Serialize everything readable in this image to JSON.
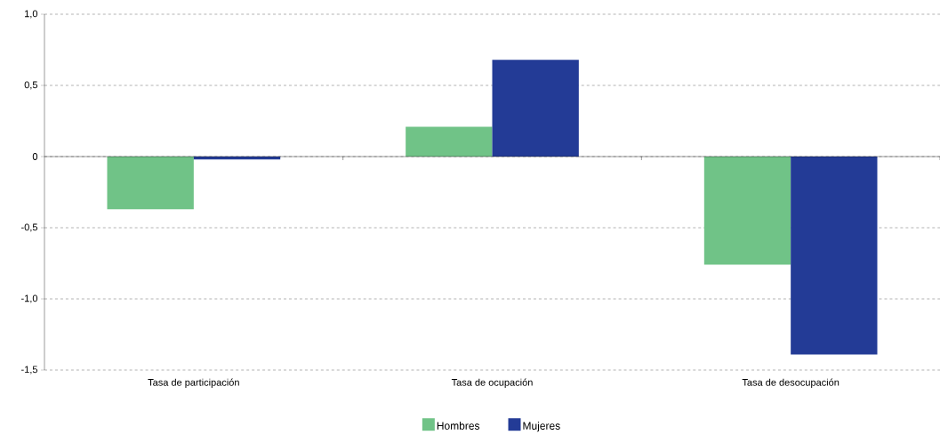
{
  "chart_data": {
    "type": "bar",
    "categories": [
      "Tasa de participación",
      "Tasa de ocupación",
      "Tasa de desocupación"
    ],
    "series": [
      {
        "name": "Hombres",
        "color": "#70c387",
        "values": [
          -0.37,
          0.21,
          -0.76
        ]
      },
      {
        "name": "Mujeres",
        "color": "#233b96",
        "values": [
          -0.02,
          0.68,
          -1.39
        ]
      }
    ],
    "ylim": [
      -1.5,
      1.0
    ],
    "yticks": [
      {
        "value": -1.5,
        "label": "-1,5"
      },
      {
        "value": -1.0,
        "label": "-1,0"
      },
      {
        "value": -0.5,
        "label": "-0,5"
      },
      {
        "value": 0,
        "label": "0"
      },
      {
        "value": 0.5,
        "label": "0,5"
      },
      {
        "value": 1.0,
        "label": "1,0"
      }
    ],
    "grid": "y",
    "legend": "bottom"
  }
}
